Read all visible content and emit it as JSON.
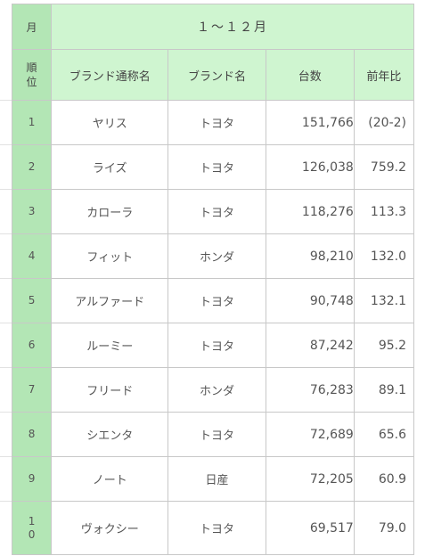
{
  "header": {
    "month_label": "月",
    "month_range": "１～１２月"
  },
  "columns": {
    "rank": "順\n位",
    "model": "ブランド通称名",
    "brand": "ブランド名",
    "count": "台数",
    "ratio": "前年比"
  },
  "rows": [
    {
      "rank": "1",
      "model": "ヤリス",
      "brand": "トヨタ",
      "count": "151,766",
      "ratio": "(20-2)"
    },
    {
      "rank": "2",
      "model": "ライズ",
      "brand": "トヨタ",
      "count": "126,038",
      "ratio": "759.2"
    },
    {
      "rank": "3",
      "model": "カローラ",
      "brand": "トヨタ",
      "count": "118,276",
      "ratio": "113.3"
    },
    {
      "rank": "4",
      "model": "フィット",
      "brand": "ホンダ",
      "count": "98,210",
      "ratio": "132.0"
    },
    {
      "rank": "5",
      "model": "アルファード",
      "brand": "トヨタ",
      "count": "90,748",
      "ratio": "132.1"
    },
    {
      "rank": "6",
      "model": "ルーミー",
      "brand": "トヨタ",
      "count": "87,242",
      "ratio": "95.2"
    },
    {
      "rank": "7",
      "model": "フリード",
      "brand": "ホンダ",
      "count": "76,283",
      "ratio": "89.1"
    },
    {
      "rank": "8",
      "model": "シエンタ",
      "brand": "トヨタ",
      "count": "72,689",
      "ratio": "65.6"
    },
    {
      "rank": "9",
      "model": "ノート",
      "brand": "日産",
      "count": "72,205",
      "ratio": "60.9"
    },
    {
      "rank": "1\n0",
      "model": "ヴォクシー",
      "brand": "トヨタ",
      "count": "69,517",
      "ratio": "79.0"
    }
  ]
}
